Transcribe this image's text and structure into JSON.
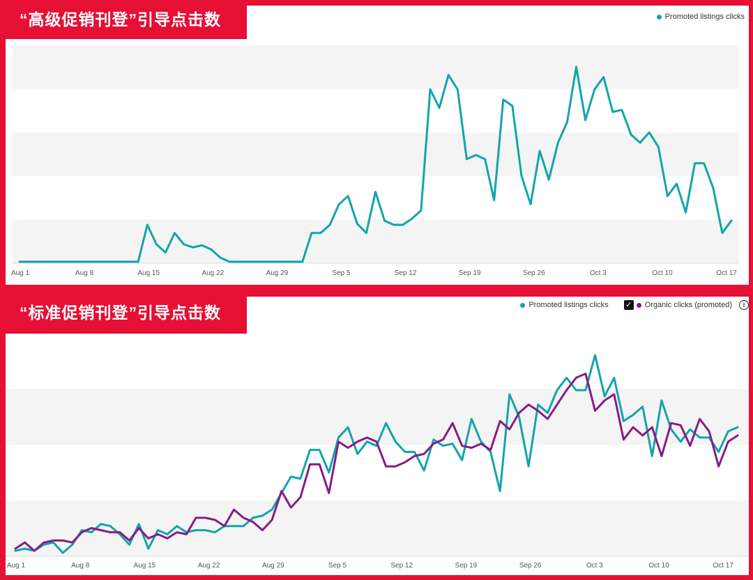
{
  "charts": [
    {
      "title": "“高级促销刊登”引导点击数",
      "legend": [
        {
          "label": "Promoted listings clicks",
          "color": "#12a4ab"
        }
      ]
    },
    {
      "title": "“标准促销刊登”引导点击数",
      "legend": [
        {
          "label": "Promoted listings clicks",
          "color": "#12a4ab"
        },
        {
          "label": "Organic clicks (promoted)",
          "color": "#861c86",
          "checked": true
        }
      ]
    }
  ],
  "chart_data": [
    {
      "type": "line",
      "x_ticks": [
        "Aug 1",
        "Aug 8",
        "Aug 15",
        "Aug 22",
        "Aug 29",
        "Sep 5",
        "Sep 12",
        "Sep 19",
        "Sep 26",
        "Oct 3",
        "Oct 10",
        "Oct 17"
      ],
      "ylim": [
        0,
        1
      ],
      "grid_bands": 5,
      "series": [
        {
          "name": "Promoted listings clicks",
          "color": "#12a4ab",
          "values": [
            0,
            0,
            0,
            0,
            0,
            0,
            0,
            0,
            0,
            0,
            0,
            0,
            0,
            0,
            0.18,
            0.085,
            0.045,
            0.14,
            0.085,
            0.07,
            0.08,
            0.06,
            0.02,
            0,
            0,
            0,
            0,
            0,
            0,
            0,
            0,
            0,
            0.14,
            0.14,
            0.18,
            0.28,
            0.32,
            0.185,
            0.14,
            0.34,
            0.2,
            0.18,
            0.18,
            0.21,
            0.25,
            0.84,
            0.75,
            0.91,
            0.84,
            0.5,
            0.52,
            0.5,
            0.3,
            0.79,
            0.76,
            0.42,
            0.28,
            0.54,
            0.4,
            0.58,
            0.68,
            0.95,
            0.69,
            0.84,
            0.9,
            0.73,
            0.74,
            0.62,
            0.58,
            0.63,
            0.56,
            0.32,
            0.38,
            0.24,
            0.48,
            0.48,
            0.36,
            0.14,
            0.2
          ]
        }
      ]
    },
    {
      "type": "line",
      "x_ticks": [
        "Aug 1",
        "Aug 8",
        "Aug 15",
        "Aug 22",
        "Aug 29",
        "Sep 5",
        "Sep 12",
        "Sep 19",
        "Sep 26",
        "Oct 3",
        "Oct 10",
        "Oct 17"
      ],
      "ylim": [
        0,
        1
      ],
      "grid_bands": 4,
      "series": [
        {
          "name": "Promoted listings clicks",
          "color": "#12a4ab",
          "values": [
            0.02,
            0.03,
            0.02,
            0.05,
            0.06,
            0.01,
            0.05,
            0.12,
            0.11,
            0.15,
            0.14,
            0.1,
            0.05,
            0.15,
            0.03,
            0.12,
            0.1,
            0.14,
            0.11,
            0.12,
            0.12,
            0.11,
            0.14,
            0.14,
            0.14,
            0.18,
            0.19,
            0.22,
            0.3,
            0.38,
            0.37,
            0.51,
            0.51,
            0.4,
            0.57,
            0.62,
            0.49,
            0.55,
            0.53,
            0.64,
            0.55,
            0.5,
            0.5,
            0.41,
            0.56,
            0.53,
            0.54,
            0.46,
            0.66,
            0.55,
            0.5,
            0.31,
            0.78,
            0.67,
            0.43,
            0.73,
            0.69,
            0.8,
            0.86,
            0.8,
            0.8,
            0.97,
            0.77,
            0.86,
            0.65,
            0.68,
            0.72,
            0.48,
            0.75,
            0.61,
            0.55,
            0.61,
            0.57,
            0.57,
            0.5,
            0.6,
            0.62
          ]
        },
        {
          "name": "Organic clicks (promoted)",
          "color": "#861c86",
          "values": [
            0.03,
            0.06,
            0.02,
            0.06,
            0.07,
            0.07,
            0.06,
            0.11,
            0.13,
            0.12,
            0.11,
            0.11,
            0.07,
            0.13,
            0.08,
            0.1,
            0.08,
            0.11,
            0.1,
            0.18,
            0.18,
            0.17,
            0.14,
            0.22,
            0.18,
            0.16,
            0.12,
            0.17,
            0.31,
            0.23,
            0.28,
            0.44,
            0.44,
            0.3,
            0.55,
            0.52,
            0.55,
            0.57,
            0.55,
            0.43,
            0.43,
            0.45,
            0.48,
            0.49,
            0.54,
            0.56,
            0.64,
            0.53,
            0.52,
            0.54,
            0.51,
            0.65,
            0.61,
            0.69,
            0.73,
            0.7,
            0.66,
            0.73,
            0.8,
            0.86,
            0.88,
            0.7,
            0.75,
            0.78,
            0.56,
            0.62,
            0.58,
            0.62,
            0.48,
            0.64,
            0.63,
            0.53,
            0.66,
            0.6,
            0.43,
            0.55,
            0.58
          ]
        }
      ]
    }
  ]
}
